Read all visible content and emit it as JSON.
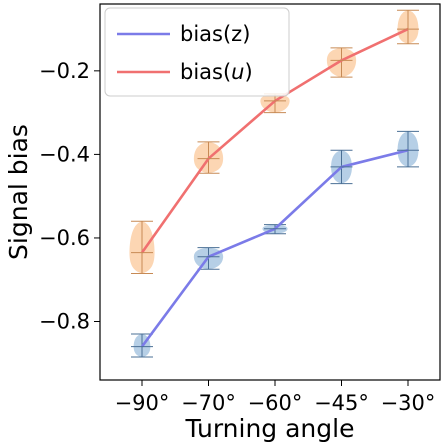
{
  "chart_data": {
    "type": "line",
    "xlabel": "Turning angle",
    "ylabel": "Signal bias",
    "categories": [
      "−90°",
      "−70°",
      "−60°",
      "−45°",
      "−30°"
    ],
    "ylim": [
      -0.94,
      -0.04
    ],
    "yticks": [
      -0.8,
      -0.6,
      -0.4,
      -0.2
    ],
    "ytick_labels": [
      "−0.8",
      "−0.6",
      "−0.4",
      "−0.2"
    ],
    "grid": false,
    "legend": "top-left",
    "series": [
      {
        "name": "bias(z)",
        "name_base": "bias(z)",
        "name_italic": "",
        "color": "#7b7be8",
        "fill": "#a9c7e2",
        "values": [
          -0.86,
          -0.645,
          -0.578,
          -0.43,
          -0.39
        ],
        "ranges": [
          [
            -0.885,
            -0.83
          ],
          [
            -0.675,
            -0.623
          ],
          [
            -0.59,
            -0.568
          ],
          [
            -0.47,
            -0.39
          ],
          [
            -0.43,
            -0.345
          ]
        ],
        "spread": [
          0.02,
          0.035,
          0.03,
          0.025,
          0.025
        ]
      },
      {
        "name": "bias(u)",
        "name_base": "bias(",
        "name_italic": "u",
        "name_end": ")",
        "color": "#f07070",
        "fill": "#fbcfa6",
        "values": [
          -0.635,
          -0.41,
          -0.272,
          -0.175,
          -0.1
        ],
        "ranges": [
          [
            -0.685,
            -0.56
          ],
          [
            -0.445,
            -0.37
          ],
          [
            -0.3,
            -0.255
          ],
          [
            -0.215,
            -0.145
          ],
          [
            -0.135,
            -0.055
          ]
        ],
        "spread": [
          0.03,
          0.035,
          0.035,
          0.035,
          0.025
        ]
      }
    ]
  }
}
